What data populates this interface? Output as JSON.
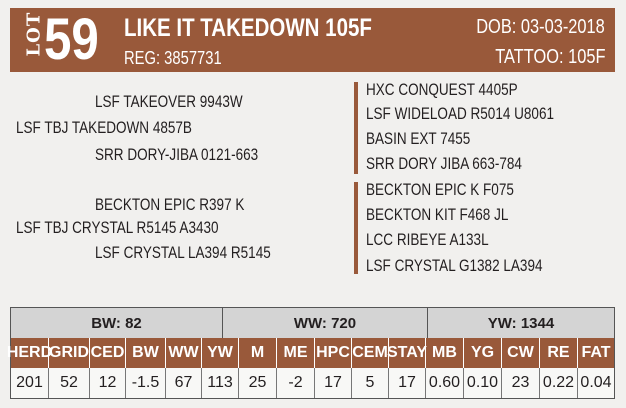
{
  "header": {
    "lot_label": "LOT",
    "lot_number": "59",
    "name": "LIKE IT TAKEDOWN 105F",
    "reg": "REG: 3857731",
    "dob": "DOB: 03-03-2018",
    "tattoo": "TATTOO: 105F"
  },
  "pedigree": {
    "sire": "LSF TBJ TAKEDOWN 4857B",
    "sire_sire": "LSF TAKEOVER 9943W",
    "sire_dam": "SRR DORY-JIBA 0121-663",
    "dam": "LSF TBJ CRYSTAL R5145 A3430",
    "dam_sire": "BECKTON EPIC R397 K",
    "dam_dam": "LSF CRYSTAL LA394 R5145",
    "sire_ancestors": [
      "HXC CONQUEST 4405P",
      "LSF WIDELOAD R5014 U8061",
      "BASIN EXT 7455",
      "SRR DORY JIBA 663-784"
    ],
    "dam_ancestors": [
      "BECKTON EPIC K F075",
      "BECKTON KIT F468 JL",
      "LCC RIBEYE A133L",
      "LSF CRYSTAL G1382 LA394"
    ]
  },
  "weights": {
    "bw": "BW: 82",
    "ww": "WW: 720",
    "yw": "YW: 1344"
  },
  "epd_headers": [
    "HERD",
    "GRID",
    "CED",
    "BW",
    "WW",
    "YW",
    "M",
    "ME",
    "HPC",
    "CEM",
    "STAY",
    "MB",
    "YG",
    "CW",
    "RE",
    "FAT"
  ],
  "epd_values": [
    "201",
    "52",
    "12",
    "-1.5",
    "67",
    "113",
    "25",
    "-2",
    "17",
    "5",
    "17",
    "0.60",
    "0.10",
    "23",
    "0.22",
    "0.04"
  ],
  "colors": {
    "accent": "#99593a",
    "group_bg": "#d4d4d4"
  }
}
